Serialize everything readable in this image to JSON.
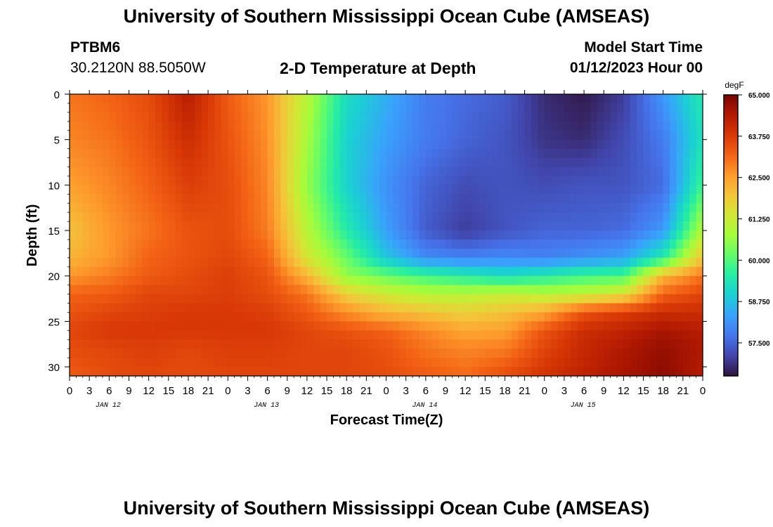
{
  "header": {
    "title": "University of Southern Mississippi Ocean Cube (AMSEAS)",
    "station": "PTBM6",
    "coords": "30.2120N  88.5050W",
    "subtitle": "2-D Temperature at Depth",
    "model_start_label": "Model Start Time",
    "model_start_value": "01/12/2023 Hour 00"
  },
  "footer": {
    "title": "University of Southern Mississippi Ocean Cube (AMSEAS)"
  },
  "chart_data": {
    "type": "heatmap",
    "title": "2-D Temperature at Depth",
    "xlabel": "Forecast Time(Z)",
    "ylabel": "Depth (ft)",
    "x_hours": [
      0,
      96
    ],
    "x_ticks": [
      "0",
      "3",
      "6",
      "9",
      "12",
      "15",
      "18",
      "21",
      "0",
      "3",
      "6",
      "9",
      "12",
      "15",
      "18",
      "21",
      "0",
      "3",
      "6",
      "9",
      "12",
      "15",
      "18",
      "21",
      "0",
      "3",
      "6",
      "9",
      "12",
      "15",
      "18",
      "21",
      "0"
    ],
    "day_labels": [
      {
        "label": "JAN 12",
        "hour": 5
      },
      {
        "label": "JAN 13",
        "hour": 29
      },
      {
        "label": "JAN 14",
        "hour": 53
      },
      {
        "label": "JAN 15",
        "hour": 77
      }
    ],
    "ylim": [
      0,
      31
    ],
    "y_ticks": [
      0,
      5,
      10,
      15,
      20,
      25,
      30
    ],
    "colorbar": {
      "unit": "degF",
      "min": 56.5,
      "max": 65.0,
      "labels": [
        "65.000",
        "63.750",
        "62.500",
        "61.250",
        "60.000",
        "58.750",
        "57.500"
      ],
      "label_values": [
        65.0,
        63.75,
        62.5,
        61.25,
        60.0,
        58.75,
        57.5
      ],
      "stops": [
        "#30123b",
        "#4145ab",
        "#4675ed",
        "#39a2fc",
        "#1bcfd4",
        "#24eca6",
        "#61fc6c",
        "#a4fc3b",
        "#d1e834",
        "#f3c63a",
        "#fe9b2d",
        "#f36315",
        "#d93806",
        "#b11901",
        "#7a0402"
      ]
    },
    "grid": {
      "hours": [
        0,
        6,
        12,
        18,
        24,
        30,
        36,
        42,
        48,
        54,
        60,
        66,
        72,
        78,
        84,
        90,
        96
      ],
      "depths": [
        0,
        5,
        10,
        15,
        18,
        20,
        22,
        24,
        26,
        28,
        31
      ],
      "temps": [
        [
          63.0,
          63.2,
          63.5,
          64.3,
          63.3,
          62.6,
          61.0,
          59.2,
          58.5,
          57.8,
          57.6,
          57.4,
          56.8,
          56.6,
          57.0,
          58.2,
          59.5
        ],
        [
          62.8,
          63.0,
          63.4,
          64.0,
          63.4,
          62.7,
          60.8,
          59.0,
          58.3,
          57.8,
          57.5,
          57.3,
          56.9,
          56.8,
          57.2,
          57.8,
          59.3
        ],
        [
          62.5,
          62.8,
          63.2,
          63.7,
          63.5,
          62.8,
          60.6,
          59.0,
          58.1,
          57.5,
          57.2,
          57.3,
          57.2,
          57.3,
          57.3,
          57.6,
          59.8
        ],
        [
          62.0,
          62.6,
          63.0,
          63.4,
          63.5,
          62.9,
          61.0,
          59.5,
          58.3,
          57.4,
          57.0,
          57.3,
          57.5,
          57.5,
          57.6,
          58.2,
          61.0
        ],
        [
          62.2,
          62.6,
          63.2,
          63.4,
          63.6,
          63.2,
          61.4,
          60.2,
          58.8,
          58.0,
          57.9,
          58.0,
          57.9,
          58.1,
          58.3,
          59.5,
          62.0
        ],
        [
          62.6,
          62.9,
          63.3,
          63.5,
          63.7,
          63.4,
          62.2,
          60.6,
          60.2,
          59.8,
          59.5,
          59.2,
          59.5,
          59.8,
          59.9,
          62.2,
          63.0
        ],
        [
          63.2,
          63.3,
          63.6,
          63.6,
          63.7,
          63.5,
          63.0,
          61.8,
          61.3,
          61.0,
          61.0,
          61.2,
          61.0,
          61.1,
          61.5,
          63.2,
          63.6
        ],
        [
          63.4,
          63.6,
          63.7,
          63.8,
          63.8,
          63.7,
          63.3,
          62.7,
          62.2,
          62.0,
          61.8,
          62.0,
          62.4,
          63.4,
          63.7,
          64.0,
          64.0
        ],
        [
          63.6,
          63.8,
          63.8,
          63.8,
          63.8,
          63.8,
          63.6,
          63.4,
          63.2,
          62.8,
          62.4,
          62.5,
          63.4,
          64.0,
          64.2,
          64.5,
          64.3
        ],
        [
          63.5,
          63.6,
          63.7,
          63.6,
          63.7,
          63.7,
          63.6,
          63.6,
          63.4,
          63.0,
          62.8,
          62.9,
          63.6,
          64.1,
          64.4,
          64.7,
          64.4
        ],
        [
          63.3,
          63.5,
          63.6,
          63.5,
          63.6,
          63.6,
          63.6,
          63.6,
          63.5,
          63.3,
          63.1,
          63.5,
          63.9,
          64.2,
          64.5,
          64.8,
          64.3
        ]
      ]
    }
  }
}
